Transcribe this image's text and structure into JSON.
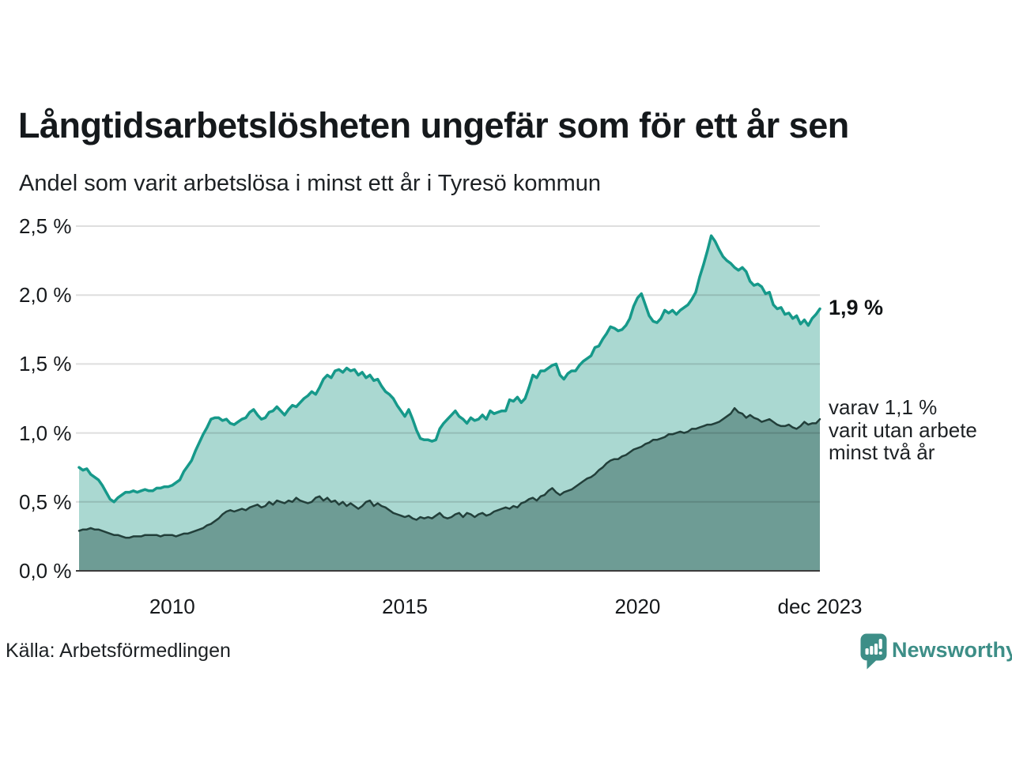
{
  "header": {
    "title": "Långtidsarbetslösheten ungefär som för ett år sen",
    "subtitle": "Andel som varit arbetslösa i minst ett år i Tyresö kommun"
  },
  "annotations": {
    "latest_total": "1,9 %",
    "detail_line1": "varav 1,1 %",
    "detail_line2": "varit utan arbete",
    "detail_line3": "minst två år"
  },
  "footer": {
    "source": "Källa: Arbetsförmedlingen",
    "brand": "Newsworthy",
    "brand_icon": "bar-chart-speech-bubble-icon"
  },
  "colors": {
    "background": "#ffffff",
    "title_text": "#15191c",
    "body_text": "#1d2124",
    "total_line": "#16998a",
    "total_fill": "#aad8d1",
    "two_year_line": "#223f3a",
    "two_year_fill": "#6e9c95",
    "gridline": "rgba(0,0,0,0.13)",
    "zero_line": "#3d3d3d",
    "brand_teal": "#3d8e87"
  },
  "chart_data": {
    "type": "area",
    "title": "Långtidsarbetslösheten ungefär som för ett år sen",
    "subtitle": "Andel som varit arbetslösa i minst ett år i Tyresö kommun",
    "unit": "%",
    "frequency": "monthly",
    "x_start": "2008-01",
    "x_end": "2023-12",
    "ylim": [
      0,
      2.5
    ],
    "grid": true,
    "y_ticks": [
      {
        "label": "0,0 %",
        "value": 0.0
      },
      {
        "label": "0,5 %",
        "value": 0.5
      },
      {
        "label": "1,0 %",
        "value": 1.0
      },
      {
        "label": "1,5 %",
        "value": 1.5
      },
      {
        "label": "2,0 %",
        "value": 2.0
      },
      {
        "label": "2,5 %",
        "value": 2.5
      }
    ],
    "x_ticks": [
      {
        "label": "2010",
        "month_index": 24
      },
      {
        "label": "2015",
        "month_index": 84
      },
      {
        "label": "2020",
        "month_index": 144
      },
      {
        "label": "dec 2023",
        "month_index": 191
      }
    ],
    "series": [
      {
        "name": "Andel arbetslösa minst ett år",
        "latest_value": 1.9,
        "line_color": "#16998a",
        "fill_color": "#aad8d1",
        "line_width": 3.5,
        "values": [
          0.75,
          0.73,
          0.74,
          0.7,
          0.68,
          0.66,
          0.62,
          0.57,
          0.52,
          0.5,
          0.53,
          0.55,
          0.57,
          0.57,
          0.58,
          0.57,
          0.58,
          0.59,
          0.58,
          0.58,
          0.6,
          0.6,
          0.61,
          0.61,
          0.62,
          0.64,
          0.66,
          0.72,
          0.76,
          0.8,
          0.87,
          0.93,
          0.99,
          1.04,
          1.1,
          1.11,
          1.11,
          1.09,
          1.1,
          1.07,
          1.06,
          1.08,
          1.1,
          1.11,
          1.15,
          1.17,
          1.13,
          1.1,
          1.11,
          1.15,
          1.16,
          1.19,
          1.16,
          1.13,
          1.17,
          1.2,
          1.19,
          1.22,
          1.25,
          1.27,
          1.3,
          1.28,
          1.33,
          1.39,
          1.42,
          1.4,
          1.45,
          1.46,
          1.44,
          1.47,
          1.45,
          1.46,
          1.42,
          1.44,
          1.4,
          1.42,
          1.38,
          1.39,
          1.34,
          1.3,
          1.28,
          1.25,
          1.2,
          1.16,
          1.12,
          1.17,
          1.1,
          1.02,
          0.96,
          0.95,
          0.95,
          0.94,
          0.95,
          1.03,
          1.07,
          1.1,
          1.13,
          1.16,
          1.12,
          1.1,
          1.07,
          1.11,
          1.09,
          1.1,
          1.13,
          1.1,
          1.16,
          1.14,
          1.15,
          1.16,
          1.16,
          1.24,
          1.23,
          1.26,
          1.22,
          1.25,
          1.33,
          1.42,
          1.4,
          1.45,
          1.45,
          1.47,
          1.49,
          1.5,
          1.42,
          1.39,
          1.43,
          1.45,
          1.45,
          1.49,
          1.52,
          1.54,
          1.56,
          1.62,
          1.63,
          1.68,
          1.72,
          1.77,
          1.76,
          1.74,
          1.75,
          1.78,
          1.83,
          1.92,
          1.98,
          2.01,
          1.93,
          1.85,
          1.81,
          1.8,
          1.83,
          1.89,
          1.87,
          1.89,
          1.86,
          1.89,
          1.91,
          1.93,
          1.97,
          2.02,
          2.13,
          2.22,
          2.32,
          2.43,
          2.39,
          2.33,
          2.28,
          2.25,
          2.23,
          2.2,
          2.18,
          2.2,
          2.17,
          2.1,
          2.07,
          2.08,
          2.06,
          2.01,
          2.02,
          1.93,
          1.9,
          1.91,
          1.86,
          1.87,
          1.83,
          1.85,
          1.79,
          1.82,
          1.78,
          1.83,
          1.86,
          1.9
        ]
      },
      {
        "name": "varav utan arbete minst två år",
        "latest_value": 1.1,
        "line_color": "#223f3a",
        "fill_color": "#6e9c95",
        "line_width": 2.5,
        "values": [
          0.29,
          0.3,
          0.3,
          0.31,
          0.3,
          0.3,
          0.29,
          0.28,
          0.27,
          0.26,
          0.26,
          0.25,
          0.24,
          0.24,
          0.25,
          0.25,
          0.25,
          0.26,
          0.26,
          0.26,
          0.26,
          0.25,
          0.26,
          0.26,
          0.26,
          0.25,
          0.26,
          0.27,
          0.27,
          0.28,
          0.29,
          0.3,
          0.31,
          0.33,
          0.34,
          0.36,
          0.38,
          0.41,
          0.43,
          0.44,
          0.43,
          0.44,
          0.45,
          0.44,
          0.46,
          0.47,
          0.48,
          0.46,
          0.47,
          0.5,
          0.48,
          0.51,
          0.5,
          0.49,
          0.51,
          0.5,
          0.53,
          0.51,
          0.5,
          0.49,
          0.5,
          0.53,
          0.54,
          0.51,
          0.53,
          0.5,
          0.51,
          0.48,
          0.5,
          0.47,
          0.49,
          0.47,
          0.45,
          0.47,
          0.5,
          0.51,
          0.47,
          0.49,
          0.47,
          0.46,
          0.44,
          0.42,
          0.41,
          0.4,
          0.39,
          0.4,
          0.38,
          0.37,
          0.39,
          0.38,
          0.39,
          0.38,
          0.4,
          0.42,
          0.39,
          0.38,
          0.39,
          0.41,
          0.42,
          0.39,
          0.42,
          0.41,
          0.39,
          0.41,
          0.42,
          0.4,
          0.41,
          0.43,
          0.44,
          0.45,
          0.46,
          0.45,
          0.47,
          0.46,
          0.49,
          0.5,
          0.52,
          0.53,
          0.51,
          0.54,
          0.55,
          0.58,
          0.6,
          0.57,
          0.55,
          0.57,
          0.58,
          0.59,
          0.61,
          0.63,
          0.65,
          0.67,
          0.68,
          0.7,
          0.73,
          0.75,
          0.78,
          0.8,
          0.81,
          0.81,
          0.83,
          0.84,
          0.86,
          0.88,
          0.89,
          0.9,
          0.92,
          0.93,
          0.95,
          0.95,
          0.96,
          0.97,
          0.99,
          0.99,
          1.0,
          1.01,
          1.0,
          1.01,
          1.03,
          1.03,
          1.04,
          1.05,
          1.06,
          1.06,
          1.07,
          1.08,
          1.1,
          1.12,
          1.14,
          1.18,
          1.15,
          1.14,
          1.11,
          1.13,
          1.11,
          1.1,
          1.08,
          1.09,
          1.1,
          1.08,
          1.06,
          1.05,
          1.05,
          1.06,
          1.04,
          1.03,
          1.05,
          1.08,
          1.06,
          1.07,
          1.07,
          1.1
        ]
      }
    ]
  }
}
